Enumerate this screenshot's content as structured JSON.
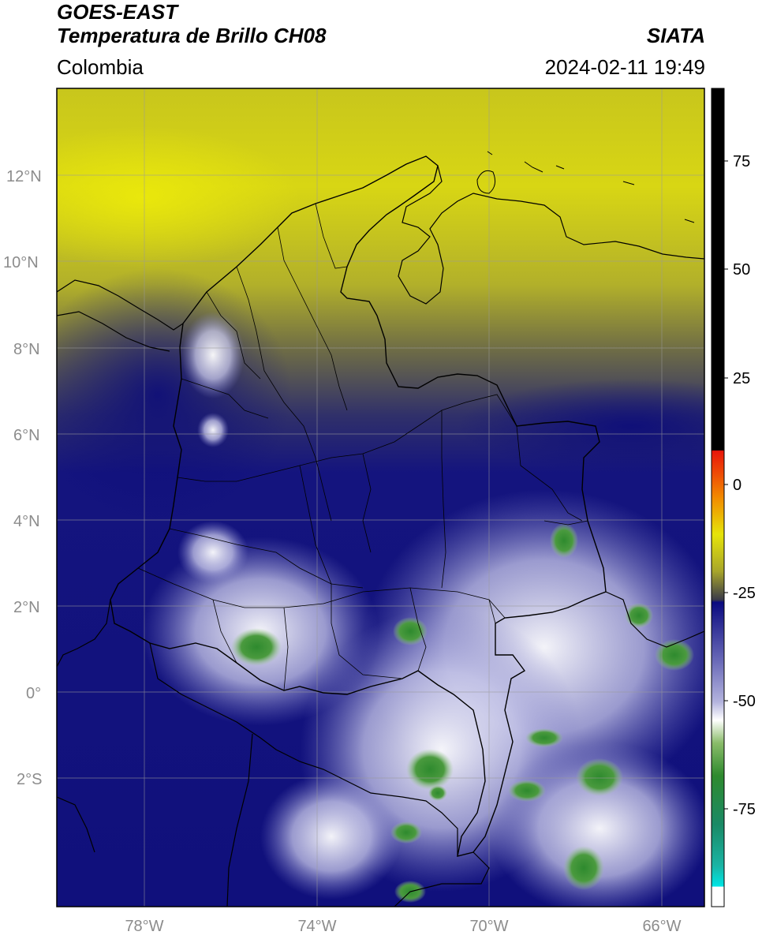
{
  "header": {
    "satellite": "GOES-EAST",
    "product": "Temperatura de Brillo CH08",
    "organization": "SIATA",
    "region": "Colombia",
    "datetime": "2024-02-11 19:49"
  },
  "map": {
    "lat_ticks": [
      "12°N",
      "10°N",
      "8°N",
      "6°N",
      "4°N",
      "2°N",
      "0°",
      "2°S"
    ],
    "lon_ticks": [
      "78°W",
      "74°W",
      "70°W",
      "66°W"
    ],
    "grid": true
  },
  "colorbar": {
    "ticks": [
      "75",
      "50",
      "25",
      "0",
      "-25",
      "-50",
      "-75"
    ],
    "colors": {
      "black": "#000000",
      "red": "#e8160a",
      "orange": "#f28a00",
      "yellow": "#e6e40a",
      "olive": "#a8a62a",
      "dark_gray": "#3a3a48",
      "navy": "#0a0a80",
      "lavender": "#b4b4de",
      "white": "#ffffff",
      "green": "#2e8a2e",
      "teal": "#1aa08a",
      "cyan": "#00e5e5"
    }
  }
}
